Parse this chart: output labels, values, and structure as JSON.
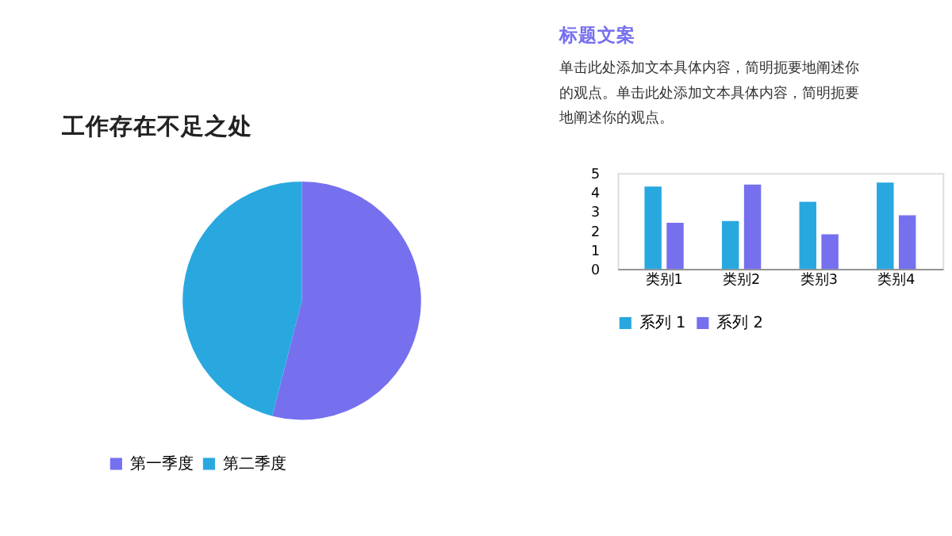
{
  "chart_data": [
    {
      "type": "pie",
      "title": "工作存在不足之处",
      "categories": [
        "第一季度",
        "第二季度"
      ],
      "values": [
        54,
        46
      ],
      "colors": [
        "#7670ef",
        "#29a8e0"
      ],
      "legend": "bottom"
    },
    {
      "type": "bar",
      "title": "标题文案",
      "subtitle": "单击此处添加文本具体内容，简明扼要地阐述你的观点。单击此处添加文本具体内容，简明扼要地阐述你的观点。",
      "categories": [
        "类别1",
        "类别2",
        "类别3",
        "类别4"
      ],
      "series": [
        {
          "name": "系列 1",
          "color": "#29a8e0",
          "values": [
            4.3,
            2.5,
            3.5,
            4.5
          ]
        },
        {
          "name": "系列 2",
          "color": "#7670ef",
          "values": [
            2.4,
            4.4,
            1.8,
            2.8
          ]
        }
      ],
      "ylim": [
        0,
        5
      ],
      "yticks": [
        0,
        1,
        2,
        3,
        4,
        5
      ],
      "grid": false,
      "legend": "bottom"
    }
  ]
}
